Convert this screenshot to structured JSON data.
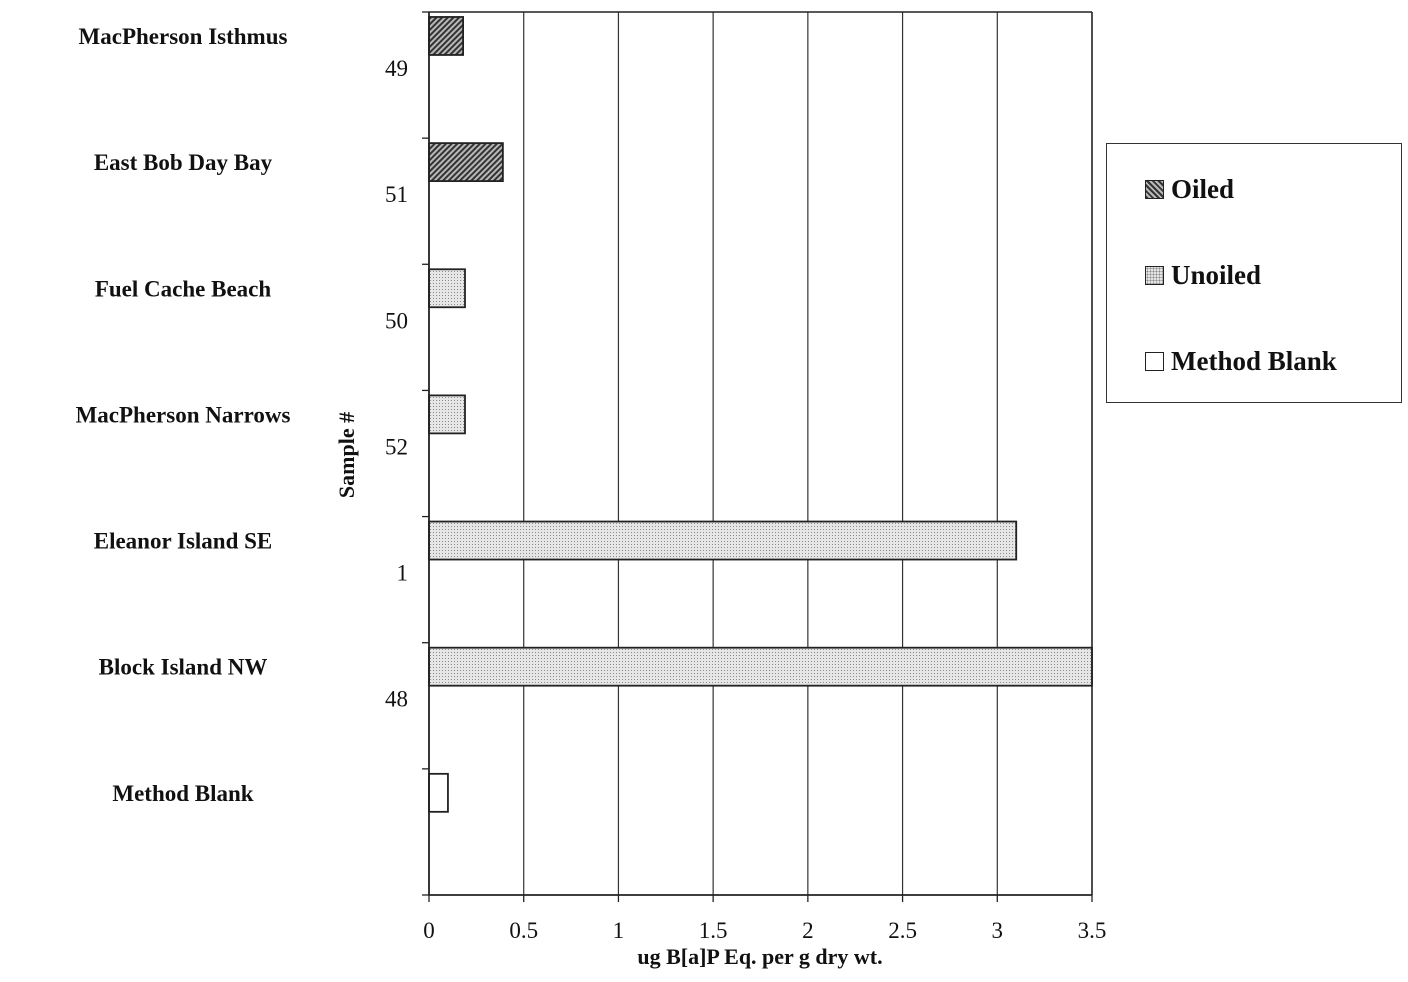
{
  "chart_data": {
    "type": "bar",
    "orientation": "horizontal",
    "title": "",
    "xlabel": "ug B[a]P Eq. per g dry wt.",
    "ylabel": "Sample #",
    "xlim": [
      0,
      3.5
    ],
    "x_ticks": [
      "0",
      "0.5",
      "1",
      "1.5",
      "2",
      "2.5",
      "3",
      "3.5"
    ],
    "grid": "vertical",
    "legend_position": "right",
    "colors": {
      "oiled": "#3a3a3a",
      "unoiled": "#d9d9d9",
      "blank": "#ffffff"
    },
    "categories": [
      {
        "site": "MacPherson Isthmus",
        "sample": "49",
        "value": 0.18,
        "group": "oiled"
      },
      {
        "site": "East Bob Day Bay",
        "sample": "51",
        "value": 0.39,
        "group": "oiled"
      },
      {
        "site": "Fuel Cache Beach",
        "sample": "50",
        "value": 0.19,
        "group": "unoiled"
      },
      {
        "site": "MacPherson Narrows",
        "sample": "52",
        "value": 0.19,
        "group": "unoiled"
      },
      {
        "site": "Eleanor Island SE",
        "sample": "1",
        "value": 3.1,
        "group": "unoiled"
      },
      {
        "site": "Block Island NW",
        "sample": "48",
        "value": 3.5,
        "group": "unoiled"
      },
      {
        "site": "Method Blank",
        "sample": "",
        "value": 0.1,
        "group": "blank"
      }
    ],
    "legend": [
      {
        "group": "oiled",
        "label": "Oiled"
      },
      {
        "group": "unoiled",
        "label": "Unoiled"
      },
      {
        "group": "blank",
        "label": "Method Blank"
      }
    ]
  }
}
